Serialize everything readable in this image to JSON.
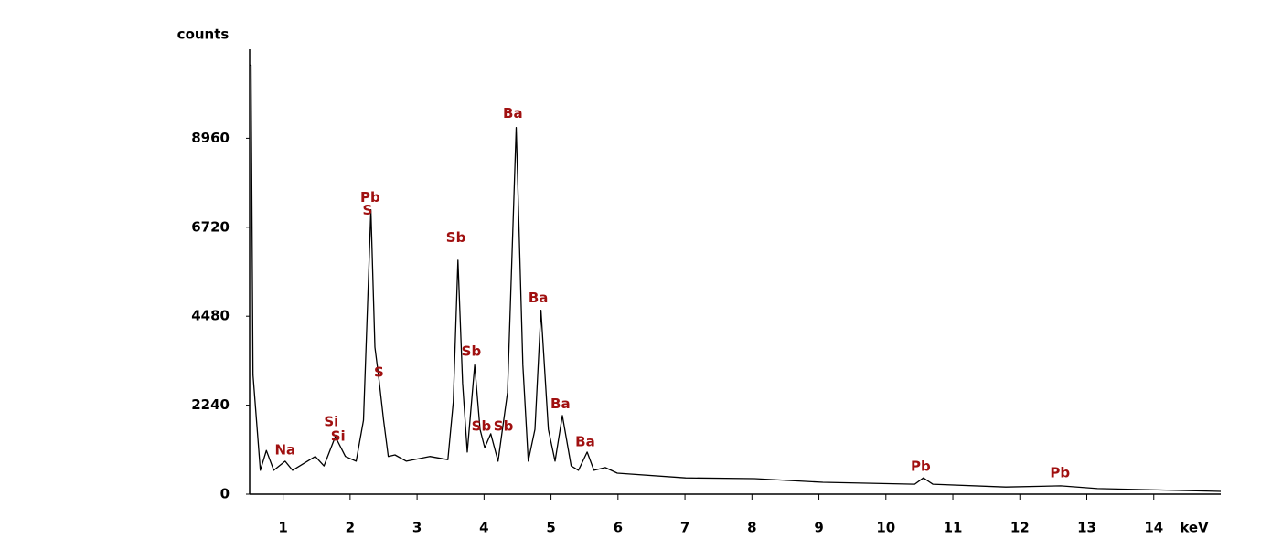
{
  "chart_data": {
    "type": "line",
    "x_label": "keV",
    "y_label": "counts",
    "xlim": [
      0.5,
      15
    ],
    "ylim": [
      0,
      11200
    ],
    "xticks": [
      1,
      2,
      3,
      4,
      5,
      6,
      7,
      8,
      9,
      10,
      11,
      12,
      13,
      14
    ],
    "yticks": [
      0,
      2240,
      4480,
      6720,
      8960
    ],
    "color": "#000000",
    "annotation_color": "#a01010",
    "x": [
      0.5,
      0.52,
      0.55,
      0.66,
      0.75,
      0.86,
      1.03,
      1.14,
      1.48,
      1.61,
      1.78,
      1.93,
      2.09,
      2.2,
      2.31,
      2.37,
      2.43,
      2.5,
      2.57,
      2.67,
      2.84,
      3.19,
      3.46,
      3.54,
      3.61,
      3.68,
      3.75,
      3.86,
      3.94,
      4.01,
      4.1,
      4.21,
      4.35,
      4.48,
      4.58,
      4.66,
      4.76,
      4.85,
      4.96,
      5.06,
      5.17,
      5.3,
      5.41,
      5.54,
      5.64,
      5.81,
      5.99,
      7.01,
      8.04,
      9.06,
      10.43,
      10.56,
      10.7,
      11.79,
      12.61,
      13.16,
      15.0
    ],
    "values": [
      10800,
      10800,
      3000,
      600,
      1100,
      600,
      830,
      600,
      950,
      710,
      1450,
      950,
      830,
      1860,
      7160,
      3700,
      2900,
      1860,
      950,
      990,
      830,
      950,
      870,
      2320,
      5890,
      2790,
      1060,
      3250,
      1630,
      1170,
      1520,
      830,
      2560,
      9230,
      3250,
      830,
      1630,
      4630,
      1630,
      830,
      1980,
      710,
      600,
      1060,
      600,
      670,
      530,
      410,
      390,
      300,
      250,
      410,
      250,
      180,
      210,
      140,
      70
    ],
    "annotations": [
      {
        "text": "Na",
        "x": 1.03,
        "y": 1100
      },
      {
        "text": "Si",
        "x": 1.72,
        "y": 1820
      },
      {
        "text": "Si",
        "x": 1.82,
        "y": 1450
      },
      {
        "text": "Pb",
        "x": 2.3,
        "y": 7460
      },
      {
        "text": "S",
        "x": 2.26,
        "y": 7140
      },
      {
        "text": "S",
        "x": 2.43,
        "y": 3060
      },
      {
        "text": "Sb",
        "x": 3.58,
        "y": 6450
      },
      {
        "text": "Sb",
        "x": 3.81,
        "y": 3590
      },
      {
        "text": "Sb",
        "x": 3.96,
        "y": 1700
      },
      {
        "text": "Sb",
        "x": 4.29,
        "y": 1700
      },
      {
        "text": "Ba",
        "x": 4.43,
        "y": 9580
      },
      {
        "text": "Ba",
        "x": 4.81,
        "y": 4930
      },
      {
        "text": "Ba",
        "x": 5.14,
        "y": 2260
      },
      {
        "text": "Ba",
        "x": 5.51,
        "y": 1310
      },
      {
        "text": "Pb",
        "x": 10.52,
        "y": 690
      },
      {
        "text": "Pb",
        "x": 12.6,
        "y": 530
      }
    ]
  }
}
